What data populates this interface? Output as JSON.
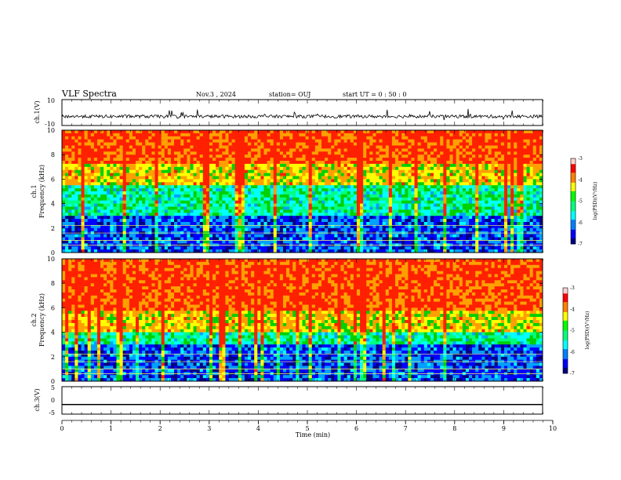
{
  "header": {
    "title": "VLF Spectra",
    "date": "Nov.3 , 2024",
    "station": "station= OUJ",
    "start": "start UT = 0 : 50 : 0"
  },
  "colors": {
    "spectrum": [
      "#000080",
      "#0000ff",
      "#00a0ff",
      "#00ffff",
      "#00ff80",
      "#00d000",
      "#ffff00",
      "#ffa000",
      "#ff2000"
    ]
  },
  "chart_data": [
    {
      "type": "line",
      "name": "ch1-waveform",
      "ylabel": "ch.1(V)",
      "ylim": [
        -10,
        10
      ],
      "yticks": [
        10,
        -10
      ],
      "xlim": [
        0,
        10
      ],
      "description_values": {
        "baseline": -3
      }
    },
    {
      "type": "heatmap",
      "name": "ch1-spectrogram",
      "ylabel_channel": "ch.1",
      "ylabel": "Frequency (kHz)",
      "ylim": [
        0,
        10
      ],
      "yticks": [
        0,
        2,
        4,
        6,
        8,
        10
      ],
      "xlim": [
        0,
        10
      ],
      "colorbar": {
        "label": "log(PSD)(V²/Hz)",
        "range": [
          -7,
          -3
        ],
        "ticks": [
          -3,
          -4,
          -5,
          -6,
          -7
        ]
      }
    },
    {
      "type": "heatmap",
      "name": "ch2-spectrogram",
      "ylabel_channel": "ch.2",
      "ylabel": "Frequency (kHz)",
      "ylim": [
        0,
        10
      ],
      "yticks": [
        0,
        2,
        4,
        6,
        8,
        10
      ],
      "xlim": [
        0,
        10
      ],
      "colorbar": {
        "label": "log(PSD)(V²/Hz)",
        "range": [
          -7,
          -3
        ],
        "ticks": [
          -3,
          -4,
          -5,
          -6,
          -7
        ]
      }
    },
    {
      "type": "line",
      "name": "ch3-waveform",
      "ylabel": "ch.3(V)",
      "ylim": [
        -5,
        5
      ],
      "yticks": [
        5,
        0,
        -5
      ],
      "xlim": [
        0,
        10
      ],
      "values": {
        "x": [
          0,
          9.8
        ],
        "y": [
          -1.5,
          -1.5
        ]
      }
    }
  ],
  "xaxis": {
    "label": "Time (min)",
    "ticks": [
      "0",
      "1",
      "2",
      "3",
      "4",
      "5",
      "6",
      "7",
      "8",
      "9",
      "10"
    ]
  }
}
